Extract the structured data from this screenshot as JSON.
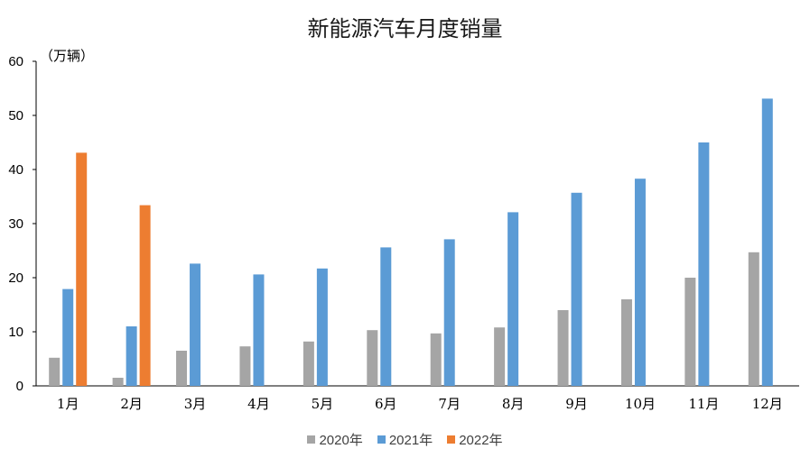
{
  "chart_data": {
    "type": "bar",
    "title": "新能源汽车月度销量",
    "unit_label": "（万辆）",
    "categories": [
      "1月",
      "2月",
      "3月",
      "4月",
      "5月",
      "6月",
      "7月",
      "8月",
      "9月",
      "10月",
      "11月",
      "12月"
    ],
    "series": [
      {
        "name": "2020年",
        "color": "#a5a5a5",
        "values": [
          5.2,
          1.5,
          6.5,
          7.3,
          8.2,
          10.3,
          9.7,
          10.8,
          14.0,
          16.0,
          20.0,
          24.7
        ]
      },
      {
        "name": "2021年",
        "color": "#5b9bd5",
        "values": [
          17.9,
          11.0,
          22.6,
          20.6,
          21.7,
          25.6,
          27.1,
          32.1,
          35.7,
          38.3,
          45.0,
          53.1
        ]
      },
      {
        "name": "2022年",
        "color": "#ed7d31",
        "values": [
          43.1,
          33.4,
          null,
          null,
          null,
          null,
          null,
          null,
          null,
          null,
          null,
          null
        ]
      }
    ],
    "ylim": [
      0,
      60
    ],
    "yticks": [
      0,
      10,
      20,
      30,
      40,
      50,
      60
    ],
    "grid": false,
    "legend_position": "bottom"
  }
}
